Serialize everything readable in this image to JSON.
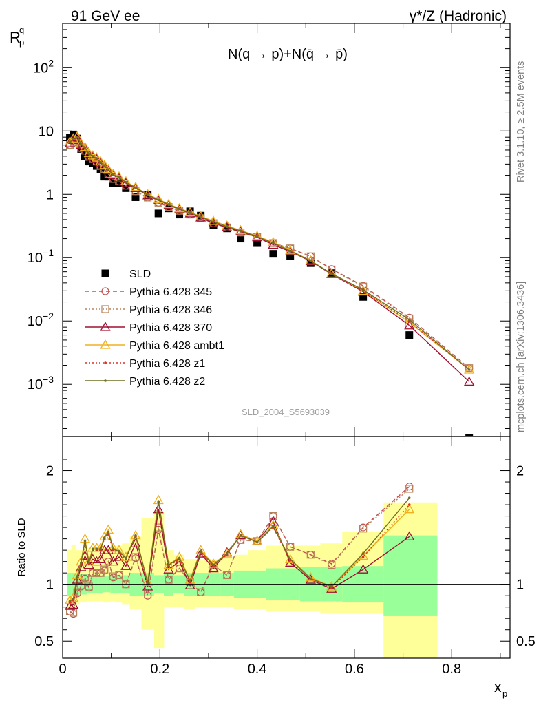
{
  "header": {
    "left": "91 GeV ee",
    "right": "γ*/Z (Hadronic)"
  },
  "side_labels": {
    "rivet": "Rivet 3.1.10, ≥ 2.5M events",
    "mcplots": "mcplots.cern.ch [arXiv:1306.3436]"
  },
  "chart_data": [
    {
      "type": "scatter",
      "panel": "main",
      "title": "N(q → p)+N(q̄ → p̄)",
      "analysis_label": "SLD_2004_S5693039",
      "xlabel": "x_p",
      "ylabel": "R_p^q",
      "yscale": "log",
      "xlim": [
        0,
        0.92
      ],
      "ylim": [
        0.00015,
        500
      ],
      "x_ticks": [
        "0",
        "0.2",
        "0.4",
        "0.6",
        "0.8"
      ],
      "y_tick_labels": [
        "10^-3",
        "10^-2",
        "10^-1",
        "1",
        "10",
        "10^2"
      ],
      "legend_position": "left-center",
      "x": [
        0.015,
        0.022,
        0.03,
        0.038,
        0.046,
        0.054,
        0.062,
        0.07,
        0.078,
        0.086,
        0.094,
        0.104,
        0.116,
        0.13,
        0.15,
        0.175,
        0.197,
        0.218,
        0.24,
        0.262,
        0.284,
        0.31,
        0.338,
        0.366,
        0.4,
        0.433,
        0.468,
        0.51,
        0.553,
        0.618,
        0.713,
        0.836
      ],
      "series": [
        {
          "name": "SLD",
          "color": "#000000",
          "marker": "filled-square",
          "line": "none",
          "values": [
            7.9,
            8.8,
            7.6,
            5.2,
            4.0,
            3.3,
            3.1,
            2.8,
            2.5,
            1.9,
            1.9,
            1.5,
            1.5,
            1.25,
            0.9,
            0.98,
            0.5,
            0.6,
            0.48,
            0.54,
            0.46,
            0.33,
            0.29,
            0.2,
            0.17,
            0.115,
            0.105,
            0.082,
            0.057,
            0.024,
            0.006,
            0.00013
          ]
        },
        {
          "name": "Pythia 6.428 345",
          "color": "#c0504d",
          "marker": "open-circle",
          "line": "dashed",
          "values": [
            6.0,
            6.5,
            7.0,
            5.3,
            4.9,
            3.9,
            3.6,
            3.3,
            2.8,
            2.5,
            2.1,
            1.75,
            1.6,
            1.37,
            1.12,
            0.89,
            0.74,
            0.63,
            0.55,
            0.48,
            0.42,
            0.35,
            0.3,
            0.25,
            0.21,
            0.17,
            0.14,
            0.105,
            0.066,
            0.036,
            0.0113,
            0.0018
          ]
        },
        {
          "name": "Pythia 6.428 346",
          "color": "#b5835a",
          "marker": "open-square",
          "line": "dotted",
          "values": [
            6.0,
            6.6,
            7.1,
            5.4,
            4.9,
            3.9,
            3.6,
            3.3,
            2.8,
            2.5,
            2.1,
            1.75,
            1.6,
            1.37,
            1.12,
            0.89,
            0.74,
            0.63,
            0.55,
            0.48,
            0.42,
            0.35,
            0.3,
            0.25,
            0.21,
            0.17,
            0.14,
            0.105,
            0.065,
            0.035,
            0.011,
            0.0018
          ]
        },
        {
          "name": "Pythia 6.428 370",
          "color": "#a01030",
          "marker": "open-triangle",
          "line": "solid",
          "values": [
            6.4,
            7.2,
            7.9,
            6.0,
            5.4,
            4.3,
            3.9,
            3.6,
            3.1,
            2.8,
            2.4,
            2.0,
            1.8,
            1.5,
            1.25,
            0.96,
            0.8,
            0.68,
            0.58,
            0.5,
            0.43,
            0.35,
            0.3,
            0.26,
            0.21,
            0.16,
            0.125,
            0.088,
            0.055,
            0.029,
            0.0085,
            0.0011
          ]
        },
        {
          "name": "Pythia 6.428 ambt1",
          "color": "#f0b020",
          "marker": "open-triangle",
          "line": "solid",
          "values": [
            6.8,
            7.6,
            8.2,
            6.3,
            5.6,
            4.5,
            4.1,
            3.8,
            3.3,
            2.9,
            2.5,
            2.1,
            1.9,
            1.6,
            1.3,
            1.0,
            0.84,
            0.7,
            0.6,
            0.52,
            0.45,
            0.38,
            0.32,
            0.27,
            0.22,
            0.175,
            0.13,
            0.09,
            0.056,
            0.03,
            0.0095,
            0.0017
          ]
        },
        {
          "name": "Pythia 6.428 z1",
          "color": "#e03020",
          "marker": "dot",
          "line": "dotted",
          "values": [
            6.6,
            7.4,
            8.0,
            6.2,
            5.5,
            4.4,
            4.0,
            3.7,
            3.2,
            2.85,
            2.45,
            2.05,
            1.85,
            1.55,
            1.28,
            0.98,
            0.82,
            0.69,
            0.59,
            0.51,
            0.44,
            0.37,
            0.31,
            0.265,
            0.215,
            0.17,
            0.128,
            0.089,
            0.055,
            0.03,
            0.0098,
            0.0017
          ]
        },
        {
          "name": "Pythia 6.428 z2",
          "color": "#707020",
          "marker": "dot",
          "line": "solid",
          "values": [
            6.7,
            7.5,
            8.1,
            6.2,
            5.5,
            4.4,
            4.0,
            3.7,
            3.2,
            2.85,
            2.45,
            2.05,
            1.85,
            1.55,
            1.28,
            0.98,
            0.82,
            0.69,
            0.59,
            0.51,
            0.44,
            0.37,
            0.31,
            0.265,
            0.215,
            0.17,
            0.128,
            0.089,
            0.056,
            0.031,
            0.0105,
            0.0017
          ]
        }
      ]
    },
    {
      "type": "line",
      "panel": "ratio",
      "xlabel": "x_p",
      "ylabel": "Ratio to SLD",
      "xlim": [
        0,
        0.92
      ],
      "ylim": [
        0.35,
        2.3
      ],
      "y_ticks": [
        "0.5",
        "1",
        "2"
      ],
      "reference_line": 1,
      "x": [
        0.015,
        0.022,
        0.03,
        0.038,
        0.046,
        0.054,
        0.062,
        0.07,
        0.078,
        0.086,
        0.094,
        0.104,
        0.116,
        0.13,
        0.15,
        0.175,
        0.197,
        0.218,
        0.24,
        0.262,
        0.284,
        0.31,
        0.338,
        0.366,
        0.4,
        0.433,
        0.468,
        0.51,
        0.553,
        0.618,
        0.713
      ],
      "uncertainty_bands": {
        "bin_edges": [
          0.01,
          0.018,
          0.026,
          0.034,
          0.042,
          0.05,
          0.058,
          0.066,
          0.074,
          0.082,
          0.09,
          0.098,
          0.11,
          0.122,
          0.138,
          0.162,
          0.188,
          0.208,
          0.228,
          0.25,
          0.272,
          0.295,
          0.325,
          0.352,
          0.382,
          0.418,
          0.45,
          0.488,
          0.53,
          0.575,
          0.66,
          0.77
        ],
        "stat_low": [
          0.9,
          0.9,
          0.9,
          0.91,
          0.91,
          0.92,
          0.92,
          0.92,
          0.92,
          0.93,
          0.93,
          0.92,
          0.92,
          0.92,
          0.9,
          0.9,
          0.92,
          0.9,
          0.92,
          0.9,
          0.9,
          0.9,
          0.9,
          0.88,
          0.88,
          0.86,
          0.86,
          0.85,
          0.85,
          0.84,
          0.72
        ],
        "stat_high": [
          1.1,
          1.1,
          1.1,
          1.09,
          1.09,
          1.08,
          1.08,
          1.08,
          1.08,
          1.07,
          1.07,
          1.08,
          1.08,
          1.08,
          1.1,
          1.1,
          1.08,
          1.1,
          1.08,
          1.1,
          1.1,
          1.1,
          1.1,
          1.12,
          1.12,
          1.14,
          1.14,
          1.15,
          1.15,
          1.16,
          1.43
        ],
        "total_low": [
          0.8,
          0.8,
          0.82,
          0.84,
          0.84,
          0.85,
          0.85,
          0.85,
          0.85,
          0.84,
          0.84,
          0.85,
          0.84,
          0.82,
          0.78,
          0.6,
          0.44,
          0.8,
          0.8,
          0.78,
          0.8,
          0.8,
          0.8,
          0.78,
          0.78,
          0.76,
          0.76,
          0.76,
          0.74,
          0.74,
          0.35
        ],
        "total_high": [
          1.3,
          1.35,
          1.3,
          1.3,
          1.32,
          1.32,
          1.32,
          1.32,
          1.32,
          1.33,
          1.33,
          1.32,
          1.34,
          1.36,
          1.42,
          1.58,
          1.64,
          1.3,
          1.26,
          1.22,
          1.22,
          1.22,
          1.24,
          1.26,
          1.3,
          1.34,
          1.34,
          1.34,
          1.36,
          1.46,
          1.72
        ]
      },
      "series": [
        {
          "name": "Pythia 6.428 345",
          "color": "#c0504d",
          "marker": "open-circle",
          "line": "dashed",
          "values": [
            0.76,
            0.74,
            0.92,
            0.98,
            1.05,
            0.97,
            1.1,
            1.1,
            1.1,
            1.12,
            1.2,
            1.06,
            1.08,
            1.0,
            1.23,
            0.9,
            1.48,
            1.04,
            1.14,
            1.02,
            0.93,
            1.17,
            1.08,
            1.39,
            1.38,
            1.6,
            1.33,
            1.26,
            1.18,
            1.5,
            1.86
          ]
        },
        {
          "name": "Pythia 6.428 346",
          "color": "#b5835a",
          "marker": "open-square",
          "line": "dotted",
          "values": [
            0.76,
            0.75,
            0.93,
            0.99,
            1.06,
            0.98,
            1.1,
            1.1,
            1.1,
            1.13,
            1.2,
            1.07,
            1.08,
            1.0,
            1.24,
            0.91,
            1.5,
            1.04,
            1.14,
            1.02,
            0.93,
            1.17,
            1.08,
            1.39,
            1.38,
            1.6,
            1.33,
            1.26,
            1.17,
            1.49,
            1.84
          ]
        },
        {
          "name": "Pythia 6.428 370",
          "color": "#a01030",
          "marker": "open-triangle",
          "line": "solid",
          "values": [
            0.81,
            0.82,
            1.04,
            1.15,
            1.25,
            1.17,
            1.22,
            1.2,
            1.22,
            1.3,
            1.3,
            1.2,
            1.24,
            1.16,
            1.36,
            0.98,
            1.66,
            1.13,
            1.2,
            0.99,
            1.27,
            1.14,
            1.28,
            1.43,
            1.38,
            1.55,
            1.19,
            1.04,
            0.96,
            1.13,
            1.42
          ]
        },
        {
          "name": "Pythia 6.428 ambt1",
          "color": "#f0b020",
          "marker": "open-triangle",
          "line": "solid",
          "values": [
            0.86,
            0.88,
            1.08,
            1.2,
            1.4,
            1.2,
            1.32,
            1.32,
            1.32,
            1.42,
            1.48,
            1.32,
            1.3,
            1.24,
            1.43,
            1.02,
            1.74,
            1.17,
            1.24,
            1.04,
            1.3,
            1.18,
            1.27,
            1.44,
            1.38,
            1.52,
            1.22,
            1.06,
            0.98,
            1.25,
            1.66
          ]
        },
        {
          "name": "Pythia 6.428 z1",
          "color": "#e03020",
          "marker": "dot",
          "line": "dotted",
          "values": [
            0.84,
            0.86,
            1.06,
            1.18,
            1.36,
            1.18,
            1.3,
            1.3,
            1.3,
            1.4,
            1.44,
            1.3,
            1.28,
            1.22,
            1.42,
            1.0,
            1.72,
            1.16,
            1.22,
            1.02,
            1.28,
            1.16,
            1.26,
            1.43,
            1.37,
            1.5,
            1.21,
            1.05,
            0.97,
            1.24,
            1.7
          ]
        },
        {
          "name": "Pythia 6.428 z2",
          "color": "#707020",
          "marker": "dot",
          "line": "solid",
          "values": [
            0.85,
            0.87,
            1.07,
            1.19,
            1.38,
            1.19,
            1.31,
            1.31,
            1.31,
            1.41,
            1.46,
            1.31,
            1.29,
            1.23,
            1.43,
            1.01,
            1.73,
            1.17,
            1.23,
            1.03,
            1.29,
            1.17,
            1.27,
            1.43,
            1.37,
            1.51,
            1.22,
            1.05,
            0.98,
            1.27,
            1.76
          ]
        }
      ]
    }
  ]
}
